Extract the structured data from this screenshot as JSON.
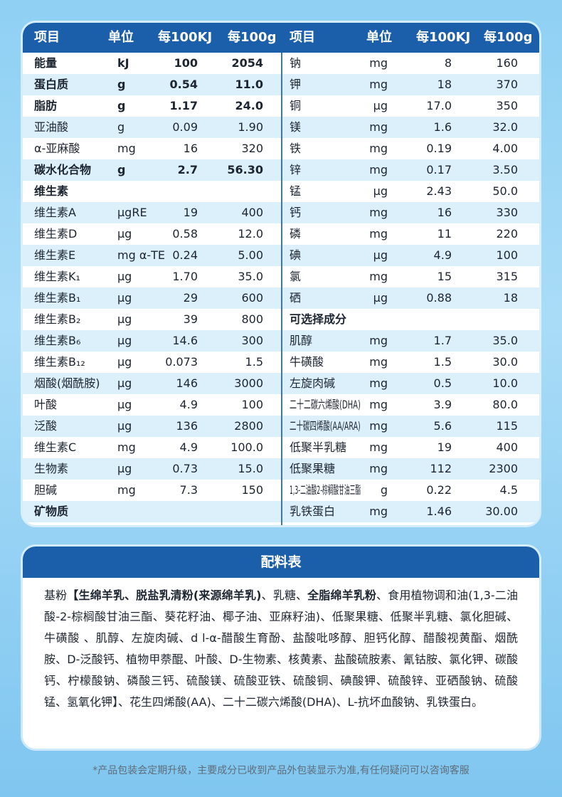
{
  "table": {
    "header": [
      "项目",
      "单位",
      "每100KJ",
      "每100g",
      "项目",
      "单位",
      "每100KJ",
      "每100g"
    ],
    "left_rows": [
      {
        "cells": [
          "能量",
          "kJ",
          "100",
          "2054"
        ],
        "bold": true
      },
      {
        "cells": [
          "蛋白质",
          "g",
          "0.54",
          "11.0"
        ],
        "bold": true
      },
      {
        "cells": [
          "脂肪",
          "g",
          "1.17",
          "24.0"
        ],
        "bold": true
      },
      {
        "cells": [
          "亚油酸",
          "g",
          "0.09",
          "1.90"
        ]
      },
      {
        "cells": [
          "α-亚麻酸",
          "mg",
          "16",
          "320"
        ]
      },
      {
        "cells": [
          "碳水化合物",
          "g",
          "2.7",
          "56.30"
        ],
        "bold": true
      },
      {
        "cells": [
          "维生素"
        ],
        "bold": true
      },
      {
        "cells": [
          "维生素A",
          "μgRE",
          "19",
          "400"
        ]
      },
      {
        "cells": [
          "维生素D",
          "μg",
          "0.58",
          "12.0"
        ]
      },
      {
        "cells": [
          "维生素E",
          "mg α-TE",
          "0.24",
          "5.00"
        ]
      },
      {
        "cells": [
          "维生素K₁",
          "μg",
          "1.70",
          "35.0"
        ]
      },
      {
        "cells": [
          "维生素B₁",
          "μg",
          "29",
          "600"
        ]
      },
      {
        "cells": [
          "维生素B₂",
          "μg",
          "39",
          "800"
        ]
      },
      {
        "cells": [
          "维生素B₆",
          "μg",
          "14.6",
          "300"
        ]
      },
      {
        "cells": [
          "维生素B₁₂",
          "μg",
          "0.073",
          "1.5"
        ]
      },
      {
        "cells": [
          "烟酸(烟酰胺)",
          "μg",
          "146",
          "3000"
        ]
      },
      {
        "cells": [
          "叶酸",
          "μg",
          "4.9",
          "100"
        ]
      },
      {
        "cells": [
          "泛酸",
          "μg",
          "136",
          "2800"
        ]
      },
      {
        "cells": [
          "维生素C",
          "mg",
          "4.9",
          "100.0"
        ]
      },
      {
        "cells": [
          "生物素",
          "μg",
          "0.73",
          "15.0"
        ]
      },
      {
        "cells": [
          "胆碱",
          "mg",
          "7.3",
          "150"
        ]
      },
      {
        "cells": [
          "矿物质"
        ],
        "bold": true
      }
    ],
    "right_rows": [
      {
        "cells": [
          "钠",
          "mg",
          "8",
          "160"
        ]
      },
      {
        "cells": [
          "钾",
          "mg",
          "18",
          "370"
        ]
      },
      {
        "cells": [
          "铜",
          "μg",
          "17.0",
          "350"
        ]
      },
      {
        "cells": [
          "镁",
          "mg",
          "1.6",
          "32.0"
        ]
      },
      {
        "cells": [
          "铁",
          "mg",
          "0.19",
          "4.00"
        ]
      },
      {
        "cells": [
          "锌",
          "mg",
          "0.17",
          "3.50"
        ]
      },
      {
        "cells": [
          "锰",
          "μg",
          "2.43",
          "50.0"
        ]
      },
      {
        "cells": [
          "钙",
          "mg",
          "16",
          "330"
        ]
      },
      {
        "cells": [
          "磷",
          "mg",
          "11",
          "220"
        ]
      },
      {
        "cells": [
          "碘",
          "μg",
          "4.9",
          "100"
        ]
      },
      {
        "cells": [
          "氯",
          "mg",
          "15",
          "315"
        ]
      },
      {
        "cells": [
          "硒",
          "μg",
          "0.88",
          "18"
        ]
      },
      {
        "cells": [
          "可选择成分"
        ],
        "bold": true
      },
      {
        "cells": [
          "肌醇",
          "mg",
          "1.7",
          "35.0"
        ]
      },
      {
        "cells": [
          "牛磺酸",
          "mg",
          "1.5",
          "30.0"
        ]
      },
      {
        "cells": [
          "左旋肉碱",
          "mg",
          "0.5",
          "10.0"
        ]
      },
      {
        "cells": [
          "二十二碳六烯酸(DHA)",
          "mg",
          "3.9",
          "80.0"
        ]
      },
      {
        "cells": [
          "二十碳四烯酸(AA/ARA)",
          "mg",
          "5.6",
          "115"
        ]
      },
      {
        "cells": [
          "低聚半乳糖",
          "mg",
          "19",
          "400"
        ]
      },
      {
        "cells": [
          "低聚果糖",
          "mg",
          "112",
          "2300"
        ]
      },
      {
        "cells": [
          "1,3-二油酸2-棕榈酸甘油三酯",
          "g",
          "0.22",
          "4.5"
        ]
      },
      {
        "cells": [
          "乳铁蛋白",
          "mg",
          "1.46",
          "30.00"
        ]
      }
    ]
  },
  "ingredients": {
    "title": "配料表",
    "segments": [
      {
        "text": "基粉"
      },
      {
        "text": "【生绵羊乳、脱盐乳清粉(来源绵羊乳)",
        "bold": true
      },
      {
        "text": "、乳糖、"
      },
      {
        "text": "全脂绵羊乳粉",
        "bold": true
      },
      {
        "text": "、食用植物调和油(1,3-二油酸-2-棕榈酸甘油三酯、葵花籽油、椰子油、亚麻籽油)、低聚果糖、低聚半乳糖、氯化胆碱、牛磺酸 、肌醇、左旋肉碱、d l-α-醋酸生育酚、盐酸吡哆醇、胆钙化醇、醋酸视黄酯、烟酰胺、D-泛酸钙、植物甲萘醌、叶酸、D-生物素、核黄素、盐酸硫胺素、氰钴胺、氯化钾、碳酸钙、柠檬酸钠、磷酸三钙、硫酸镁、硫酸亚铁、硫酸铜、碘酸钾、硫酸锌、亚硒酸钠、硫酸锰、氢氧化钾】、花生四烯酸(AA)、二十二碳六烯酸(DHA)、L-抗坏血酸钠、乳铁蛋白。"
      }
    ]
  },
  "footnote": "*产品包装会定期升级，主要成分已收到产品外包装显示为准,有任何疑问可以咨询客服"
}
